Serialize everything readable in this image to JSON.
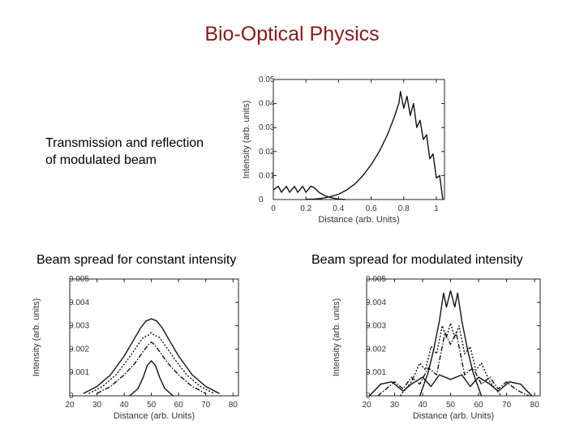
{
  "slide_title": "Bio-Optical Physics",
  "captions": {
    "transmission_line1": "Transmission and reflection",
    "transmission_line2": "of modulated beam",
    "constant": "Beam spread for constant intensity",
    "modulated": "Beam spread for modulated intensity"
  },
  "colors": {
    "title": "#8b1a1a",
    "plot_line": "#111111"
  },
  "chart_data": [
    {
      "type": "line",
      "title": "",
      "xlabel": "Distance (arb. Units)",
      "ylabel": "Intensity (arb. units)",
      "xlim": [
        0,
        1.05
      ],
      "ylim": [
        0,
        0.05
      ],
      "xticks": [
        0,
        0.2,
        0.4,
        0.6,
        0.8,
        1
      ],
      "xtick_labels": [
        "0",
        "0.2",
        "0.4",
        "0.6",
        "0.8",
        "1"
      ],
      "yticks": [
        0,
        0.01,
        0.02,
        0.03,
        0.04,
        0.05
      ],
      "ytick_labels": [
        "0",
        "0.01",
        "0.02",
        "0.03",
        "0.04",
        "0.05"
      ],
      "series": [
        {
          "style": "solid",
          "x": [
            0,
            0.03,
            0.05,
            0.08,
            0.1,
            0.13,
            0.15,
            0.18,
            0.2,
            0.23,
            0.25,
            0.28,
            0.32,
            0.36,
            0.4,
            0.44
          ],
          "y": [
            0.004,
            0.0055,
            0.003,
            0.0055,
            0.003,
            0.0055,
            0.003,
            0.0055,
            0.003,
            0.0055,
            0.005,
            0.003,
            0.0015,
            0.0007,
            0.0002,
            0
          ]
        },
        {
          "style": "solid",
          "x": [
            0.2,
            0.25,
            0.3,
            0.35,
            0.4,
            0.45,
            0.5,
            0.55,
            0.6,
            0.65,
            0.7,
            0.74,
            0.77,
            0.78,
            0.8,
            0.82,
            0.84,
            0.86,
            0.88,
            0.9,
            0.92,
            0.94,
            0.96,
            0.98,
            1.0,
            1.02,
            1.04
          ],
          "y": [
            0.0001,
            0.0002,
            0.0005,
            0.0012,
            0.0022,
            0.004,
            0.0065,
            0.01,
            0.0145,
            0.02,
            0.027,
            0.034,
            0.04,
            0.045,
            0.038,
            0.043,
            0.035,
            0.04,
            0.03,
            0.033,
            0.025,
            0.027,
            0.017,
            0.019,
            0.009,
            0.01,
            0
          ]
        }
      ]
    },
    {
      "type": "line",
      "title": "",
      "xlabel": "Distance (arb. Units)",
      "ylabel": "Intensity (arb. units)",
      "xlim": [
        20,
        82
      ],
      "ylim": [
        0,
        0.005
      ],
      "xticks": [
        20,
        30,
        40,
        50,
        60,
        70,
        80
      ],
      "xtick_labels": [
        "20",
        "30",
        "40",
        "50",
        "60",
        "70",
        "80"
      ],
      "yticks": [
        0,
        0.001,
        0.002,
        0.003,
        0.004,
        0.005
      ],
      "ytick_labels": [
        "0",
        "0.001",
        "0.002",
        "0.003",
        "0.004",
        "0.005"
      ],
      "series": [
        {
          "style": "solid",
          "x": [
            25,
            30,
            35,
            40,
            43,
            46,
            48,
            50,
            52,
            54,
            57,
            60,
            65,
            70,
            75
          ],
          "y": [
            0.0001,
            0.0004,
            0.0009,
            0.0017,
            0.0023,
            0.0029,
            0.0032,
            0.0033,
            0.0032,
            0.0029,
            0.0023,
            0.0017,
            0.0009,
            0.0004,
            0.0001
          ]
        },
        {
          "style": "dotted",
          "x": [
            27,
            32,
            37,
            41,
            44,
            47,
            49,
            50,
            51,
            53,
            56,
            59,
            63,
            68,
            73
          ],
          "y": [
            0.0001,
            0.0004,
            0.0009,
            0.0015,
            0.002,
            0.0025,
            0.0026,
            0.0027,
            0.0026,
            0.0025,
            0.002,
            0.0015,
            0.0009,
            0.0004,
            0.0001
          ]
        },
        {
          "style": "dash-dot",
          "x": [
            30,
            35,
            40,
            44,
            47,
            49,
            50,
            51,
            53,
            56,
            60,
            65,
            70
          ],
          "y": [
            0.0001,
            0.0004,
            0.0009,
            0.0014,
            0.0019,
            0.0022,
            0.0023,
            0.0022,
            0.0019,
            0.0014,
            0.0009,
            0.0004,
            0.0001
          ]
        },
        {
          "style": "solid",
          "x": [
            42,
            45,
            47,
            48.5,
            50,
            51.5,
            53,
            55,
            58
          ],
          "y": [
            0,
            0.0003,
            0.0008,
            0.0013,
            0.0015,
            0.0013,
            0.0008,
            0.0003,
            0
          ]
        }
      ]
    },
    {
      "type": "line",
      "title": "",
      "xlabel": "Distance (arb. Units)",
      "ylabel": "Intensity (arb. units)",
      "xlim": [
        20,
        82
      ],
      "ylim": [
        0,
        0.005
      ],
      "xticks": [
        20,
        30,
        40,
        50,
        60,
        70,
        80
      ],
      "xtick_labels": [
        "20",
        "30",
        "40",
        "50",
        "60",
        "70",
        "80"
      ],
      "yticks": [
        0,
        0.001,
        0.002,
        0.003,
        0.004,
        0.005
      ],
      "ytick_labels": [
        "0",
        "0.001",
        "0.002",
        "0.003",
        "0.004",
        "0.005"
      ],
      "series": [
        {
          "style": "solid",
          "x": [
            39,
            42,
            44,
            46,
            47.5,
            48.5,
            50,
            51.5,
            52.5,
            54,
            56,
            58,
            61
          ],
          "y": [
            0,
            0.001,
            0.002,
            0.0032,
            0.0044,
            0.0038,
            0.0045,
            0.0038,
            0.0044,
            0.0032,
            0.002,
            0.001,
            0
          ]
        },
        {
          "style": "dotted",
          "x": [
            32,
            36,
            39,
            41,
            43,
            45,
            47,
            48.5,
            50,
            51.5,
            53,
            55,
            57,
            59,
            61,
            64,
            68
          ],
          "y": [
            0,
            0.0006,
            0.0014,
            0.0011,
            0.0021,
            0.0018,
            0.003,
            0.0025,
            0.0031,
            0.0025,
            0.003,
            0.0018,
            0.0021,
            0.0011,
            0.0014,
            0.0006,
            0
          ]
        },
        {
          "style": "dash-dot",
          "x": [
            24,
            27,
            30,
            33,
            36,
            39,
            42,
            45,
            48,
            50,
            52,
            55,
            58,
            61,
            64,
            67,
            70,
            73,
            76,
            78
          ],
          "y": [
            0,
            0.0003,
            0.0006,
            0.0003,
            0.0008,
            0.0005,
            0.0012,
            0.0009,
            0.0027,
            0.0022,
            0.0027,
            0.0009,
            0.0012,
            0.0005,
            0.0008,
            0.0003,
            0.0006,
            0.0003,
            0.0001,
            0
          ]
        },
        {
          "style": "solid",
          "x": [
            21,
            25,
            29,
            33,
            36,
            40,
            43,
            46,
            50,
            54,
            57,
            60,
            64,
            67,
            71,
            75,
            79
          ],
          "y": [
            0,
            0.0005,
            0.0006,
            0.0002,
            0.0005,
            0.0008,
            0.0004,
            0.0009,
            0.0007,
            0.0009,
            0.0004,
            0.0008,
            0.0005,
            0.0002,
            0.0006,
            0.0005,
            0
          ]
        }
      ]
    }
  ]
}
